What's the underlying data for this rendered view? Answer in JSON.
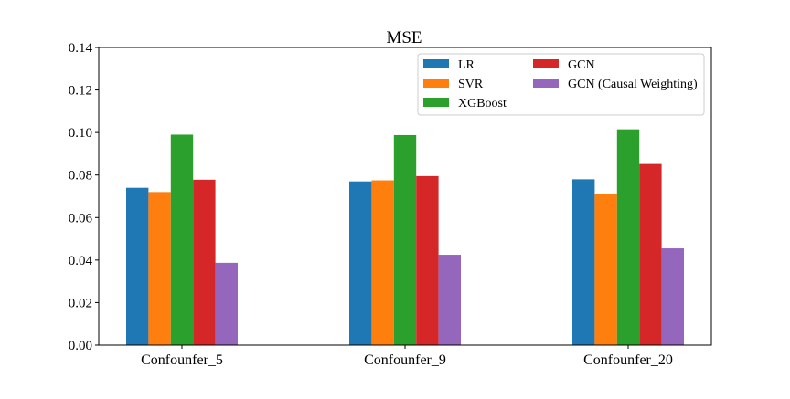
{
  "chart_data": {
    "type": "bar",
    "title": "MSE",
    "xlabel": "",
    "ylabel": "",
    "categories": [
      "Confounfer_5",
      "Confounfer_9",
      "Confounfer_20"
    ],
    "ylim": [
      0,
      0.14
    ],
    "yticks": [
      "0.00",
      "0.02",
      "0.04",
      "0.06",
      "0.08",
      "0.10",
      "0.12",
      "0.14"
    ],
    "grid": false,
    "legend_position": "top-right",
    "legend_columns": 2,
    "series": [
      {
        "name": "LR",
        "color": "#1f77b4",
        "values": [
          0.074,
          0.077,
          0.078
        ]
      },
      {
        "name": "SVR",
        "color": "#ff7f0e",
        "values": [
          0.072,
          0.0775,
          0.0712
        ]
      },
      {
        "name": "XGBoost",
        "color": "#2ca02c",
        "values": [
          0.099,
          0.0988,
          0.1015
        ]
      },
      {
        "name": "GCN",
        "color": "#d62728",
        "values": [
          0.0778,
          0.0795,
          0.0852
        ]
      },
      {
        "name": "GCN (Causal Weighting)",
        "color": "#9467bd",
        "values": [
          0.0387,
          0.0425,
          0.0455
        ]
      }
    ]
  }
}
